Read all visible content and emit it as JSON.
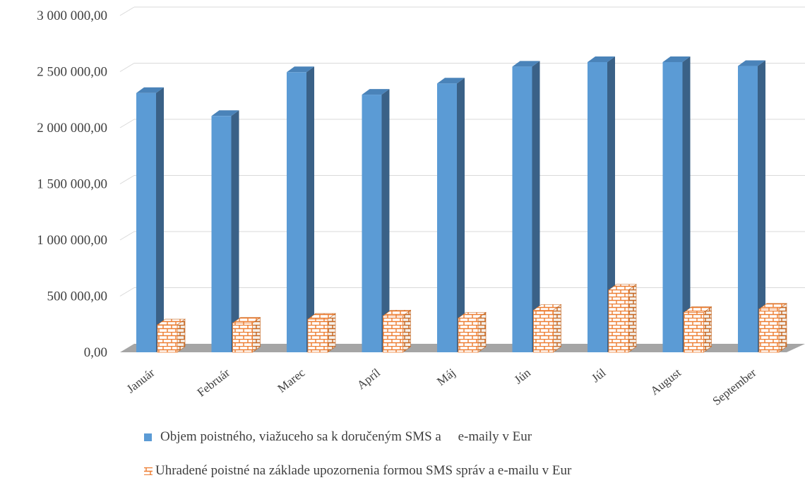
{
  "chart_data": {
    "type": "bar",
    "categories": [
      "Január",
      "Február",
      "Marec",
      "Apríl",
      "Máj",
      "Jún",
      "Júl",
      "August",
      "September"
    ],
    "series": [
      {
        "name": "Objem poistného, viažuceho sa k doručeným SMS a     e-maily v Eur",
        "values": [
          2310000,
          2105000,
          2495000,
          2295000,
          2395000,
          2545000,
          2585000,
          2585000,
          2550000
        ],
        "color": "#5b9bd5",
        "pattern": "solid"
      },
      {
        "name": "Uhradené poistné na základe upozornenia formou SMS správ a e-mailu v Eur",
        "values": [
          245000,
          260000,
          295000,
          325000,
          305000,
          375000,
          555000,
          355000,
          385000
        ],
        "color": "#ed7d31",
        "pattern": "brick"
      }
    ],
    "yticks": [
      "0,00",
      "500 000,00",
      "1 000 000,00",
      "1 500 000,00",
      "2 000 000,00",
      "2 500 000,00",
      "3 000 000,00"
    ],
    "ylim": [
      0,
      3000000
    ],
    "grid": true,
    "legend_position": "bottom",
    "style": "3d-column"
  }
}
